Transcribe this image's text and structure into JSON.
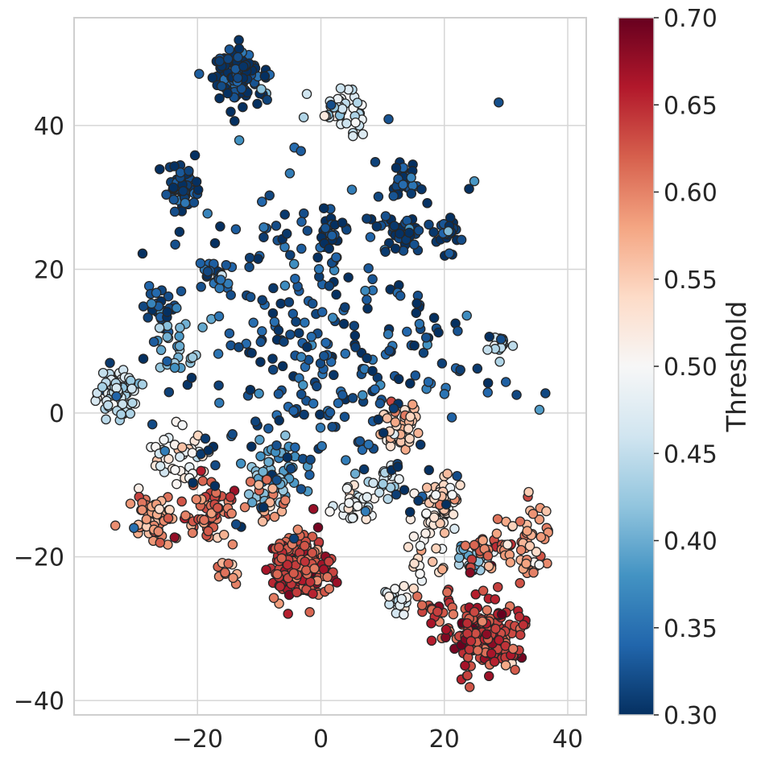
{
  "chart_data": {
    "type": "scatter",
    "title": "",
    "xlabel": "",
    "ylabel": "",
    "xlim": [
      -40,
      43
    ],
    "ylim": [
      -42,
      55
    ],
    "xticks": [
      -20,
      0,
      20,
      40
    ],
    "xtick_labels": [
      "−20",
      "0",
      "20",
      "40"
    ],
    "yticks": [
      -40,
      -20,
      0,
      20,
      40
    ],
    "ytick_labels": [
      "−40",
      "−20",
      "0",
      "20",
      "40"
    ],
    "grid": true,
    "colorbar": {
      "label": "Threshold",
      "range": [
        0.3,
        0.7
      ],
      "ticks": [
        0.3,
        0.35,
        0.4,
        0.45,
        0.5,
        0.55,
        0.6,
        0.65,
        0.7
      ],
      "tick_labels": [
        "0.30",
        "0.35",
        "0.40",
        "0.45",
        "0.50",
        "0.55",
        "0.60",
        "0.65",
        "0.70"
      ],
      "colormap": "RdBu_r",
      "colors": [
        "#053061",
        "#2166ac",
        "#4393c3",
        "#92c5de",
        "#d1e5f0",
        "#f7f7f7",
        "#fddbc7",
        "#f4a582",
        "#d6604d",
        "#b2182b",
        "#67001f"
      ]
    },
    "marker_edge_color": "#262626",
    "clusters": [
      {
        "x": -13,
        "y": 47,
        "spread": 2.2,
        "n": 110,
        "value": 0.305
      },
      {
        "x": -22.5,
        "y": 31,
        "spread": 1.5,
        "n": 50,
        "value": 0.31
      },
      {
        "x": 3.5,
        "y": 42,
        "spread": 2.0,
        "n": 40,
        "value": 0.47
      },
      {
        "x": 13,
        "y": 32.5,
        "spread": 1.5,
        "n": 25,
        "value": 0.31
      },
      {
        "x": 13,
        "y": 25,
        "spread": 1.5,
        "n": 35,
        "value": 0.31
      },
      {
        "x": 20.5,
        "y": 24.5,
        "spread": 1.0,
        "n": 22,
        "value": 0.31
      },
      {
        "x": 1.5,
        "y": 25,
        "spread": 1.5,
        "n": 25,
        "value": 0.31
      },
      {
        "x": -17,
        "y": 19,
        "spread": 1.2,
        "n": 25,
        "value": 0.33
      },
      {
        "x": -26,
        "y": 14.5,
        "spread": 1.5,
        "n": 25,
        "value": 0.32
      },
      {
        "x": -33,
        "y": 3,
        "spread": 1.6,
        "n": 70,
        "value": 0.45
      },
      {
        "x": -23,
        "y": 9,
        "spread": 2.2,
        "n": 25,
        "value": 0.4
      },
      {
        "x": 29,
        "y": 9.5,
        "spread": 0.9,
        "n": 14,
        "value": 0.43
      },
      {
        "x": 12.5,
        "y": -1.5,
        "spread": 1.6,
        "n": 40,
        "value": 0.55
      },
      {
        "x": 19.5,
        "y": -12.5,
        "spread": 1.6,
        "n": 50,
        "value": 0.53
      },
      {
        "x": 5,
        "y": -12.5,
        "spread": 1.6,
        "n": 30,
        "value": 0.5
      },
      {
        "x": 10.5,
        "y": -9,
        "spread": 1.2,
        "n": 20,
        "value": 0.45
      },
      {
        "x": -9,
        "y": -9,
        "spread": 2.5,
        "n": 50,
        "value": 0.4
      },
      {
        "x": -23,
        "y": -6,
        "spread": 2.5,
        "n": 40,
        "value": 0.5
      },
      {
        "x": -27,
        "y": -14.5,
        "spread": 1.8,
        "n": 55,
        "value": 0.58
      },
      {
        "x": -18,
        "y": -14,
        "spread": 2.3,
        "n": 60,
        "value": 0.62
      },
      {
        "x": -9,
        "y": -12,
        "spread": 1.5,
        "n": 20,
        "value": 0.59
      },
      {
        "x": -3.5,
        "y": -21.5,
        "spread": 2.4,
        "n": 180,
        "value": 0.63
      },
      {
        "x": 12.5,
        "y": -26,
        "spread": 1.0,
        "n": 20,
        "value": 0.48
      },
      {
        "x": 16.5,
        "y": -20,
        "spread": 2.5,
        "n": 25,
        "value": 0.52
      },
      {
        "x": 24.5,
        "y": -20,
        "spread": 1.3,
        "n": 25,
        "value": 0.42
      },
      {
        "x": 27.5,
        "y": -19,
        "spread": 1.8,
        "n": 30,
        "value": 0.62
      },
      {
        "x": 33,
        "y": -18,
        "spread": 2.5,
        "n": 50,
        "value": 0.58
      },
      {
        "x": 26.5,
        "y": -31,
        "spread": 2.6,
        "n": 170,
        "value": 0.645
      },
      {
        "x": 19,
        "y": -27,
        "spread": 1.8,
        "n": 20,
        "value": 0.64
      },
      {
        "x": -15,
        "y": -22.5,
        "spread": 1.2,
        "n": 10,
        "value": 0.6
      },
      {
        "x": 32,
        "y": -33,
        "spread": 1.2,
        "n": 10,
        "value": 0.64
      },
      {
        "x": -3,
        "y": 15,
        "spread": 13,
        "n": 210,
        "value": 0.32
      },
      {
        "x": 0,
        "y": 3,
        "spread": 9,
        "n": 90,
        "value": 0.33
      },
      {
        "x": 18,
        "y": 10,
        "spread": 6,
        "n": 25,
        "value": 0.32
      }
    ]
  }
}
